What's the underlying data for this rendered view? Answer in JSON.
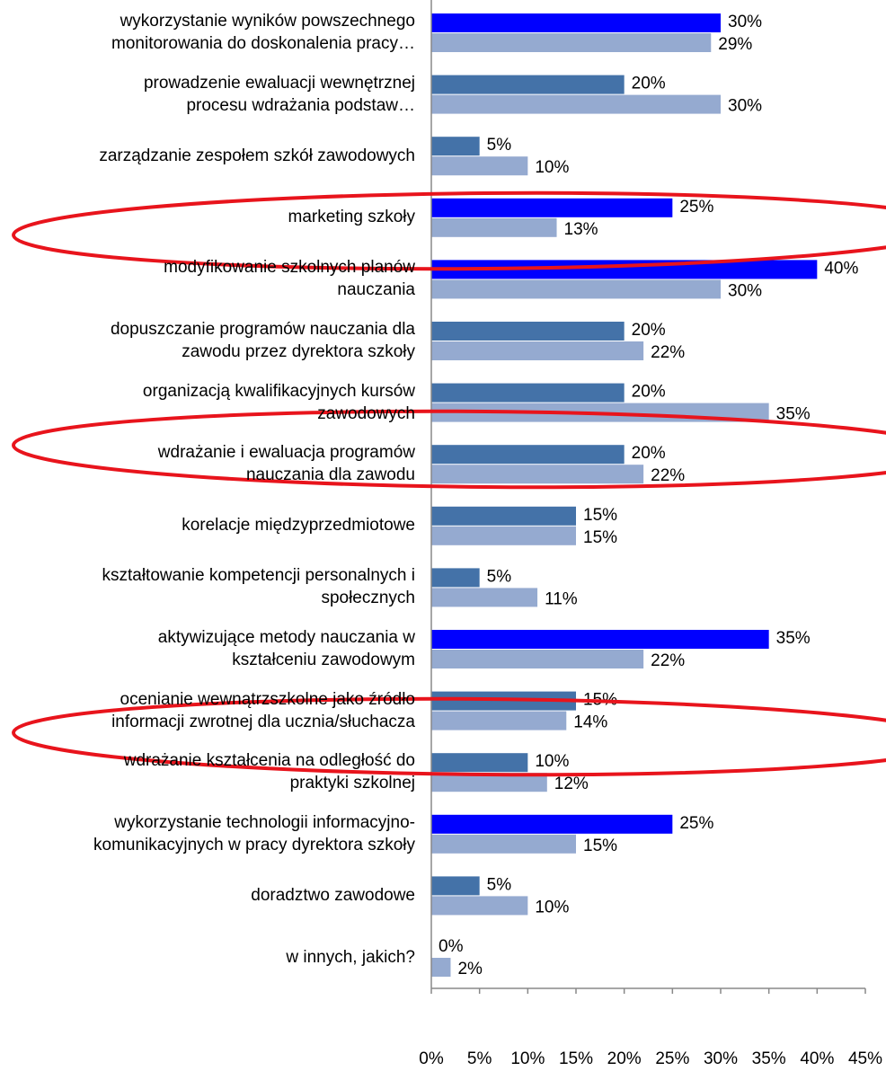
{
  "chart_data": {
    "type": "barh",
    "categories": [
      "wykorzystanie wyników powszechnego\nmonitorowania do doskonalenia pracy…",
      "prowadzenie ewaluacji wewnętrznej\nprocesu wdrażania podstaw…",
      "zarządzanie zespołem szkół zawodowych",
      "marketing szkoły",
      "modyfikowanie szkolnych planów\nnauczania",
      "dopuszczanie programów nauczania dla\nzawodu przez dyrektora szkoły",
      "organizacją kwalifikacyjnych kursów\nzawodowych",
      "wdrażanie i ewaluacja programów\nnauczania dla zawodu",
      "korelacje międzyprzedmiotowe",
      "kształtowanie kompetencji personalnych i\nspołecznych",
      "aktywizujące metody nauczania w\nkształceniu zawodowym",
      "ocenianie wewnątrzszkolne jako źródło\ninformacji zwrotnej dla ucznia/słuchacza",
      "wdrażanie kształcenia na odległość do\npraktyki szkolnej",
      "wykorzystanie technologii informacyjno-\nkomunikacyjnych w pracy dyrektora szkoły",
      "doradztwo zawodowe",
      "w innych, jakich?"
    ],
    "series": [
      {
        "colors": [
          "#0000ff",
          "#4472a8",
          "#4472a8",
          "#0000ff",
          "#0000ff",
          "#4472a8",
          "#4472a8",
          "#4472a8",
          "#4472a8",
          "#4472a8",
          "#0000ff",
          "#4472a8",
          "#4472a8",
          "#0000ff",
          "#4472a8",
          "#4472a8"
        ],
        "values": [
          30,
          20,
          5,
          25,
          40,
          20,
          20,
          20,
          15,
          5,
          35,
          15,
          10,
          25,
          5,
          0
        ],
        "value_labels": [
          "30%",
          "20%",
          "5%",
          "25%",
          "40%",
          "20%",
          "20%",
          "20%",
          "15%",
          "5%",
          "35%",
          "15%",
          "10%",
          "25%",
          "5%",
          "0%"
        ]
      },
      {
        "color": "#95aad0",
        "values": [
          29,
          30,
          10,
          13,
          30,
          22,
          35,
          22,
          15,
          11,
          22,
          14,
          12,
          15,
          10,
          2
        ],
        "value_labels": [
          "29%",
          "30%",
          "10%",
          "13%",
          "30%",
          "22%",
          "35%",
          "22%",
          "15%",
          "11%",
          "22%",
          "14%",
          "12%",
          "15%",
          "10%",
          "2%"
        ]
      }
    ],
    "xlim": [
      0,
      45
    ],
    "xticks": [
      {
        "value": 0,
        "label": "0%"
      },
      {
        "value": 5,
        "label": "5%"
      },
      {
        "value": 10,
        "label": "10%"
      },
      {
        "value": 15,
        "label": "15%"
      },
      {
        "value": 20,
        "label": "20%"
      },
      {
        "value": 25,
        "label": "25%"
      },
      {
        "value": 30,
        "label": "30%"
      },
      {
        "value": 35,
        "label": "35%"
      },
      {
        "value": 40,
        "label": "40%"
      },
      {
        "value": 45,
        "label": "45%"
      }
    ]
  }
}
